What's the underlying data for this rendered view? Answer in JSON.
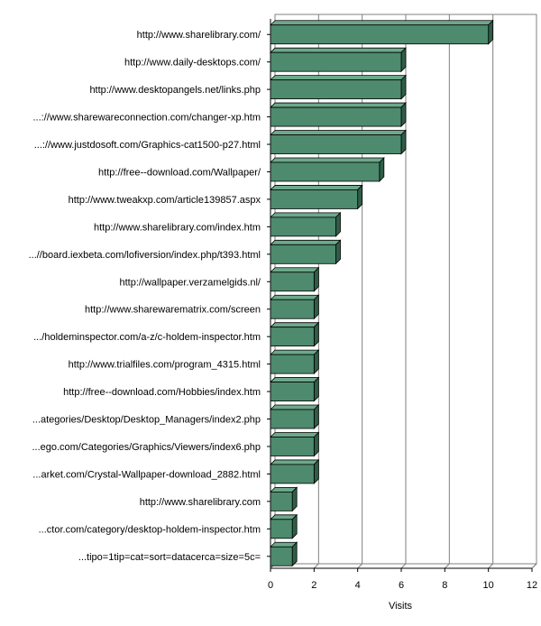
{
  "chart_data": {
    "type": "bar",
    "orientation": "horizontal",
    "style": "3d",
    "bar_color": "#4e8a6e",
    "grid": true,
    "xlabel": "Visits",
    "ylabel": "",
    "title": "",
    "xlim": [
      0,
      12
    ],
    "xticks": [
      "0",
      "2",
      "4",
      "6",
      "8",
      "10",
      "12"
    ],
    "categories": [
      "http://www.sharelibrary.com/",
      "http://www.daily-desktops.com/",
      "http://www.desktopangels.net/links.php",
      "...://www.sharewareconnection.com/changer-xp.htm",
      "...://www.justdosoft.com/Graphics-cat1500-p27.html",
      "http://free--download.com/Wallpaper/",
      "http://www.tweakxp.com/article139857.aspx",
      "http://www.sharelibrary.com/index.htm",
      "...//board.iexbeta.com/lofiversion/index.php/t393.html",
      "http://wallpaper.verzamelgids.nl/",
      "http://www.sharewarematrix.com/screen",
      ".../holdeminspector.com/a-z/c-holdem-inspector.htm",
      "http://www.trialfiles.com/program_4315.html",
      "http://free--download.com/Hobbies/index.htm",
      "...ategories/Desktop/Desktop_Managers/index2.php",
      "...ego.com/Categories/Graphics/Viewers/index6.php",
      "...arket.com/Crystal-Wallpaper-download_2882.html",
      "http://www.sharelibrary.com",
      "...ctor.com/category/desktop-holdem-inspector.htm",
      "...tipo=1tip=cat=sort=datacerca=size=5c="
    ],
    "values": [
      10,
      6,
      6,
      6,
      6,
      5,
      4,
      3,
      3,
      2,
      2,
      2,
      2,
      2,
      2,
      2,
      2,
      1,
      1,
      1
    ]
  }
}
